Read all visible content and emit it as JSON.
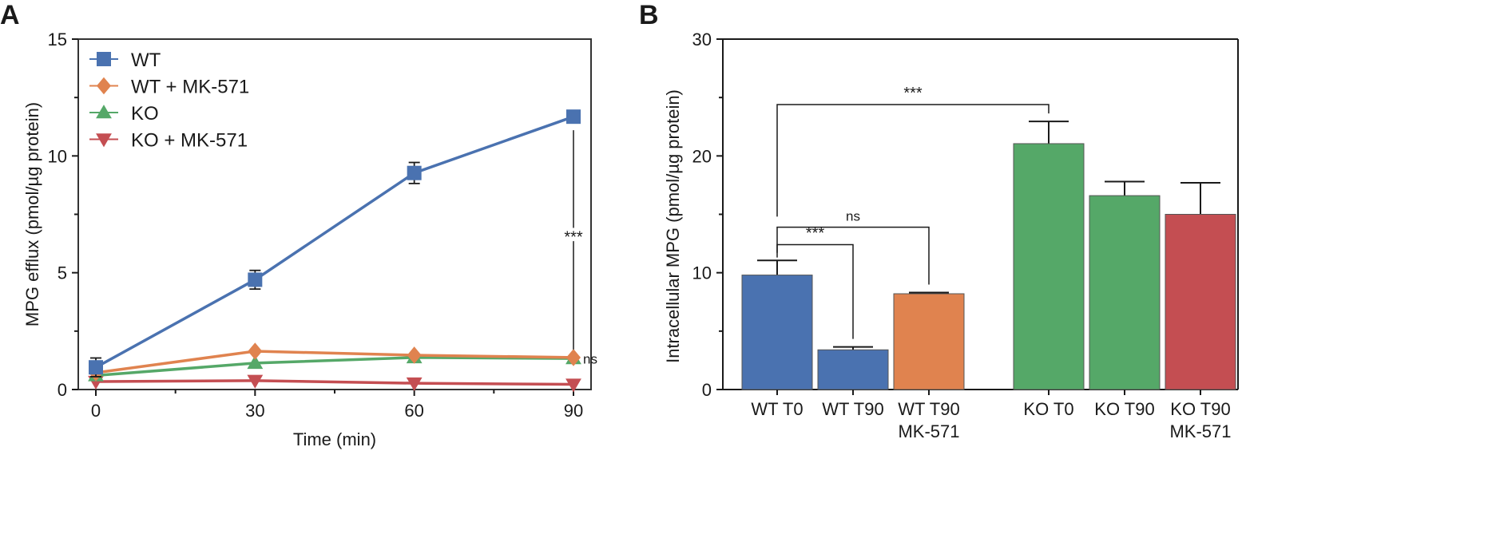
{
  "chart_data": [
    {
      "panel_label": "A",
      "type": "line",
      "xlabel": "Time (min)",
      "ylabel": "MPG efflux (pmol/µg protein)",
      "x": [
        0,
        30,
        60,
        90
      ],
      "xlim": [
        0,
        90
      ],
      "ylim": [
        0,
        15
      ],
      "xticks": [
        "0",
        "30",
        "60",
        "90"
      ],
      "yticks": [
        "0",
        "5",
        "10",
        "15"
      ],
      "grid": false,
      "legend_position": "top-left",
      "series": [
        {
          "name": "WT",
          "marker": "square",
          "color": "#4a72b0",
          "values": [
            0.95,
            4.7,
            9.27,
            11.68
          ],
          "errors": [
            0.4,
            0.4,
            0.45,
            0.2
          ]
        },
        {
          "name": "WT + MK-571",
          "marker": "diamond",
          "color": "#e0834f",
          "values": [
            0.72,
            1.64,
            1.47,
            1.37
          ],
          "errors": [
            0,
            0,
            0,
            0
          ]
        },
        {
          "name": "KO",
          "marker": "triangle-up",
          "color": "#55a868",
          "values": [
            0.6,
            1.13,
            1.37,
            1.33
          ],
          "errors": [
            0,
            0,
            0,
            0
          ]
        },
        {
          "name": "KO + MK-571",
          "marker": "triangle-down",
          "color": "#c44e52",
          "values": [
            0.34,
            0.38,
            0.27,
            0.22
          ],
          "errors": [
            0,
            0,
            0,
            0
          ]
        }
      ],
      "annotations": [
        {
          "text": "***",
          "x": 90,
          "y_from": 1.37,
          "y_to": 11.4
        },
        {
          "text": "ns",
          "x": 90,
          "y": 1.35
        }
      ]
    },
    {
      "panel_label": "B",
      "type": "bar",
      "ylabel": "Intracellular MPG (pmol/µg protein)",
      "ylim": [
        0,
        30
      ],
      "yticks": [
        "0",
        "10",
        "20",
        "30"
      ],
      "grid": false,
      "categories": [
        {
          "line1": "WT T0",
          "line2": ""
        },
        {
          "line1": "WT T90",
          "line2": ""
        },
        {
          "line1": "WT T90",
          "line2": "MK-571"
        },
        {
          "line1": "KO T0",
          "line2": ""
        },
        {
          "line1": "KO T90",
          "line2": ""
        },
        {
          "line1": "KO T90",
          "line2": "MK-571"
        }
      ],
      "values": [
        9.8,
        3.4,
        8.2,
        21.05,
        16.6,
        15.0
      ],
      "errors": [
        1.25,
        0.25,
        0.1,
        1.9,
        1.2,
        2.7
      ],
      "colors": [
        "#4a72b0",
        "#4a72b0",
        "#e0834f",
        "#55a868",
        "#55a868",
        "#c44e52"
      ],
      "brackets": [
        {
          "text": "***",
          "from": 0,
          "to": 3,
          "y": 24.4
        },
        {
          "text": "ns",
          "from": 0,
          "to": 2,
          "y": 13.9
        },
        {
          "text": "***",
          "from": 0,
          "to": 1,
          "y": 12.4
        }
      ]
    }
  ]
}
